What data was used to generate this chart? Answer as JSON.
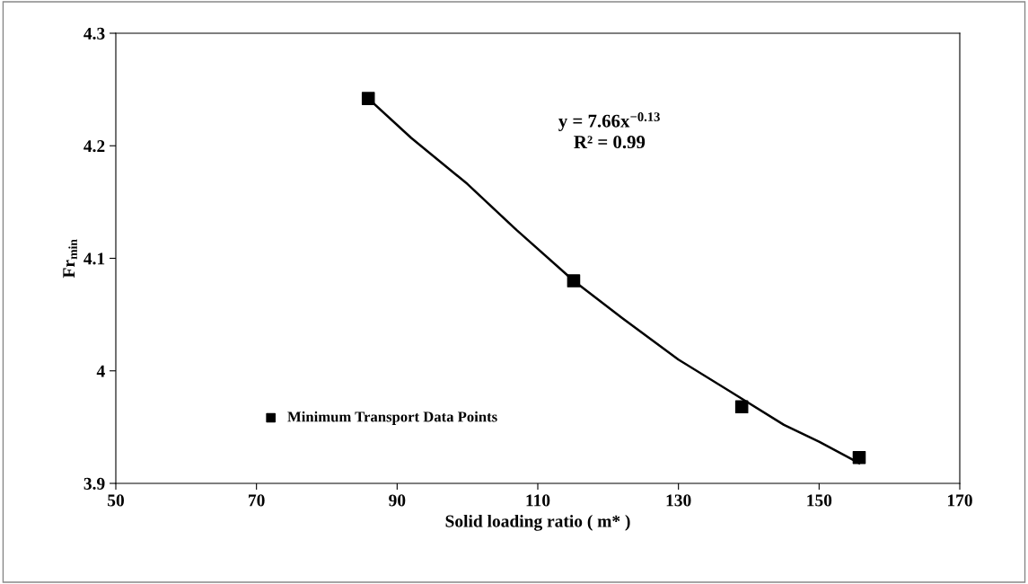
{
  "chart_data": {
    "type": "scatter",
    "xlabel": "Solid loading ratio ( m* )",
    "ylabel": "Fr$_{min}$",
    "xlim": [
      50,
      170
    ],
    "xticks": [
      50,
      70,
      90,
      110,
      130,
      150,
      170
    ],
    "ylim": [
      3.9,
      4.3
    ],
    "yticks": [
      3.9,
      4,
      4.1,
      4.2,
      4.3
    ],
    "grid": false,
    "legend": "bottom left",
    "marker": "square",
    "annotations": [
      "y = 7.66x$^{−0.13}$\nR² = 0.99"
    ],
    "series": [
      {
        "name": "Minimum Transport Data Points",
        "color": "#000000",
        "x": [
          85.9,
          115.1,
          139.0,
          155.7
        ],
        "values": [
          4.242,
          4.08,
          3.968,
          3.923
        ]
      },
      {
        "type": "line",
        "color": "#000000",
        "line_style": "solid",
        "marker": "none",
        "x": [
          85.9,
          92,
          100,
          107,
          115.1,
          122,
          130,
          137,
          145,
          150,
          155.7
        ],
        "values": [
          4.242,
          4.207,
          4.166,
          4.125,
          4.08,
          4.047,
          4.01,
          3.983,
          3.952,
          3.937,
          3.918
        ]
      }
    ]
  }
}
